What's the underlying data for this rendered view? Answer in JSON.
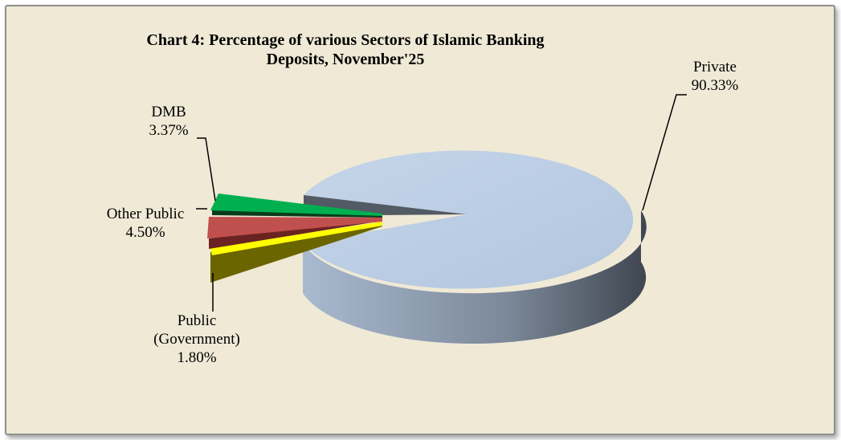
{
  "chart_data": {
    "type": "pie",
    "title": "Chart 4: Percentage of various Sectors of Islamic Banking Deposits, November'25",
    "slices": [
      {
        "name": "Private",
        "value": 90.33,
        "label": "90.33%",
        "color": "#b8cce4"
      },
      {
        "name": "Public (Government)",
        "name_lines": [
          "Public",
          "(Government)"
        ],
        "value": 1.8,
        "label": "1.80%",
        "color": "#ffff00"
      },
      {
        "name": "Other Public",
        "value": 4.5,
        "label": "4.50%",
        "color": "#c0504d"
      },
      {
        "name": "DMB",
        "value": 3.37,
        "label": "3.37%",
        "color": "#00b050"
      }
    ],
    "legend": "none",
    "style": "3d-exploded"
  }
}
